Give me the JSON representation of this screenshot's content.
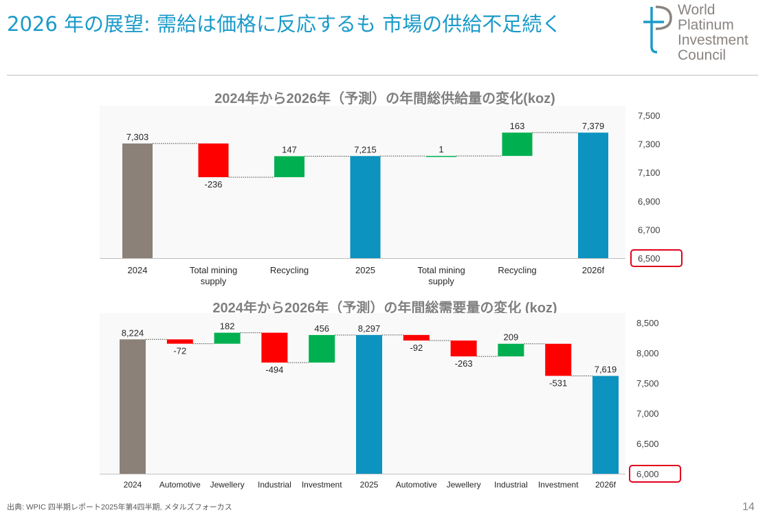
{
  "slide": {
    "title": "2026 年の展望: 需給は価格に反応するも 市場の供給不足続く",
    "logo_lines": [
      "World",
      "Platinum",
      "Investment",
      "Council"
    ],
    "footnote": "出典: WPIC 四半期レポート2025年第4四半期, メタルズフォーカス",
    "page_number": "14"
  },
  "colors": {
    "title": "#1a9ac9",
    "total_past": "#8b8178",
    "total_current": "#0c93c0",
    "increase": "#00b050",
    "decrease": "#ff0000",
    "highlight_box": "#e0001b",
    "logo": "#8a8480"
  },
  "chart_data": [
    {
      "type": "bar",
      "subtype": "waterfall",
      "title": "2024年から2026年（予測）の年間総供給量の変化(koz)",
      "categories": [
        "2024",
        "Total mining supply",
        "Recycling",
        "2025",
        "Total mining supply",
        "Recycling",
        "2026f"
      ],
      "category_lines": [
        [
          "2024"
        ],
        [
          "Total mining",
          "supply"
        ],
        [
          "Recycling"
        ],
        [
          "2025"
        ],
        [
          "Total mining",
          "supply"
        ],
        [
          "Recycling"
        ],
        [
          "2026f"
        ]
      ],
      "kinds": [
        "total_past",
        "delta",
        "delta",
        "total_current",
        "delta",
        "delta",
        "total_current"
      ],
      "values": [
        7303,
        -236,
        147,
        7215,
        1,
        163,
        7379
      ],
      "data_labels": [
        "7,303",
        "-236",
        "147",
        "7,215",
        "1",
        "163",
        "7,379"
      ],
      "y_ticks": [
        "7,500",
        "7,300",
        "7,100",
        "6,900",
        "6,700",
        "6,500"
      ],
      "ylim": [
        6500,
        7500
      ],
      "y_axis_side": "right",
      "highlighted_tick": "6,500"
    },
    {
      "type": "bar",
      "subtype": "waterfall",
      "title": "2024年から2026年（予測）の年間総需要量の変化 (koz)",
      "categories": [
        "2024",
        "Automotive",
        "Jewellery",
        "Industrial",
        "Investment",
        "2025",
        "Automotive",
        "Jewellery",
        "Industrial",
        "Investment",
        "2026f"
      ],
      "category_lines": [
        [
          "2024"
        ],
        [
          "Automotive"
        ],
        [
          "Jewellery"
        ],
        [
          "Industrial"
        ],
        [
          "Investment"
        ],
        [
          "2025"
        ],
        [
          "Automotive"
        ],
        [
          "Jewellery"
        ],
        [
          "Industrial"
        ],
        [
          "Investment"
        ],
        [
          "2026f"
        ]
      ],
      "kinds": [
        "total_past",
        "delta",
        "delta",
        "delta",
        "delta",
        "total_current",
        "delta",
        "delta",
        "delta",
        "delta",
        "total_current"
      ],
      "values": [
        8224,
        -72,
        182,
        -494,
        456,
        8297,
        -92,
        -263,
        209,
        -531,
        7619
      ],
      "data_labels": [
        "8,224",
        "-72",
        "182",
        "-494",
        "456",
        "8,297",
        "-92",
        "-263",
        "209",
        "-531",
        "7,619"
      ],
      "y_ticks": [
        "8,500",
        "8,000",
        "7,500",
        "7,000",
        "6,500",
        "6,000"
      ],
      "ylim": [
        6000,
        8500
      ],
      "y_axis_side": "right",
      "highlighted_tick": "6,000"
    }
  ]
}
